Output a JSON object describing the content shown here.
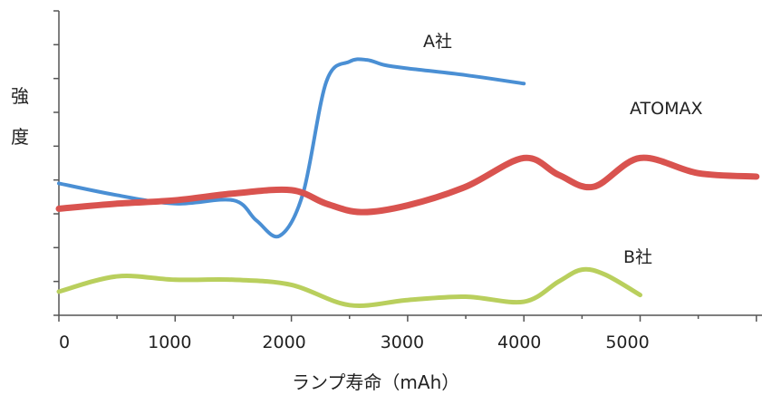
{
  "chart_data": {
    "type": "line",
    "xlabel": "ランプ寿命（mAh）",
    "ylabel": [
      "強",
      "度"
    ],
    "xlim": [
      0,
      6000
    ],
    "ylim": [
      0,
      9
    ],
    "x_ticks": [
      "0",
      "1000",
      "2000",
      "3000",
      "4000",
      "5000"
    ],
    "x_tick_values": [
      0,
      1000,
      2000,
      3000,
      4000,
      5000
    ],
    "y_tick_count": 9,
    "grid": false,
    "legend": "none",
    "series": [
      {
        "name": "A社",
        "color": "#4a8fd4",
        "x": [
          0,
          500,
          1000,
          1500,
          1700,
          1900,
          2100,
          2300,
          2500,
          2650,
          2800,
          3000,
          3500,
          4000
        ],
        "y": [
          3.9,
          3.55,
          3.3,
          3.4,
          2.8,
          2.35,
          3.6,
          6.9,
          7.5,
          7.55,
          7.4,
          7.3,
          7.1,
          6.85
        ]
      },
      {
        "name": "ATOMAX",
        "color": "#d9534f",
        "x": [
          0,
          500,
          1000,
          1500,
          2000,
          2300,
          2600,
          3000,
          3500,
          4000,
          4300,
          4600,
          5000,
          5500,
          6000
        ],
        "y": [
          3.15,
          3.3,
          3.4,
          3.6,
          3.7,
          3.3,
          3.05,
          3.25,
          3.8,
          4.65,
          4.15,
          3.8,
          4.65,
          4.2,
          4.1
        ]
      },
      {
        "name": "B社",
        "color": "#b9cf5d",
        "x": [
          0,
          500,
          1000,
          1500,
          2000,
          2500,
          3000,
          3500,
          4000,
          4300,
          4500,
          4700,
          5000
        ],
        "y": [
          0.7,
          1.15,
          1.05,
          1.05,
          0.9,
          0.3,
          0.45,
          0.55,
          0.4,
          1.0,
          1.35,
          1.2,
          0.6
        ]
      }
    ]
  }
}
